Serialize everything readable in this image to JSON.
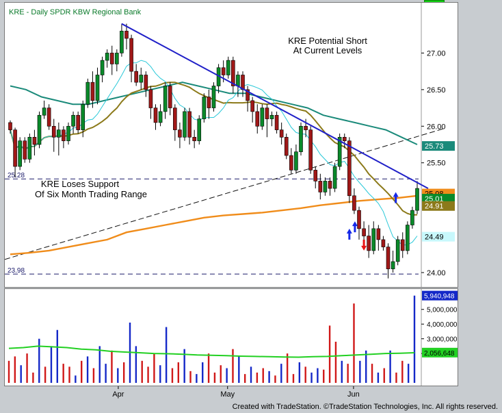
{
  "header": {
    "title": "KRE - Daily  SPDR KBW Regional Bank"
  },
  "footer": {
    "credit": "Created with TradeStation. ©TradeStation Technologies, Inc. All rights reserved."
  },
  "annotations": {
    "short_line1": "KRE Potential Short",
    "short_line2": "At Current Levels",
    "support_line1": "KRE Loses Support",
    "support_line2": "Of Six Month Trading Range",
    "level_upper": "25.28",
    "level_lower": "23.98"
  },
  "colors": {
    "up": "#0a8a2a",
    "down": "#a01818",
    "sma10": "#28c8d8",
    "sma20": "#8c7a1a",
    "sma50": "#1a8a7a",
    "sma200": "#f08c1a",
    "trend": "#2020c8",
    "vol_blue": "#1428c8",
    "vol_red": "#d01818",
    "vol_avg": "#22d022"
  },
  "chart_data": [
    {
      "type": "candlestick",
      "title": "KRE - Daily  SPDR KBW Regional Bank",
      "ylim": [
        23.85,
        27.5
      ],
      "y_ticks": [
        "27.00",
        "26.50",
        "26.00",
        "25.50",
        "24.00"
      ],
      "x_ticks": [
        "Apr",
        "May",
        "Jun"
      ],
      "candles": [
        [
          26.05,
          25.95,
          26.08,
          25.9
        ],
        [
          25.95,
          25.45,
          25.98,
          25.3
        ],
        [
          25.45,
          25.8,
          25.85,
          25.4
        ],
        [
          25.8,
          25.55,
          25.85,
          25.5
        ],
        [
          25.55,
          25.85,
          25.9,
          25.5
        ],
        [
          25.85,
          25.75,
          25.95,
          25.6
        ],
        [
          25.75,
          26.15,
          26.2,
          25.7
        ],
        [
          26.15,
          26.25,
          26.35,
          26.1
        ],
        [
          26.25,
          26.0,
          26.3,
          25.95
        ],
        [
          26.0,
          25.85,
          26.1,
          25.65
        ],
        [
          25.85,
          25.95,
          26.05,
          25.6
        ],
        [
          25.95,
          25.8,
          26.0,
          25.7
        ],
        [
          25.8,
          26.0,
          26.05,
          25.75
        ],
        [
          26.0,
          26.15,
          26.2,
          25.9
        ],
        [
          26.15,
          25.95,
          26.2,
          25.9
        ],
        [
          25.95,
          26.3,
          26.35,
          25.85
        ],
        [
          26.3,
          26.6,
          26.65,
          26.25
        ],
        [
          26.6,
          26.35,
          26.75,
          26.25
        ],
        [
          26.35,
          26.7,
          26.8,
          26.3
        ],
        [
          26.7,
          26.9,
          26.95,
          26.6
        ],
        [
          26.9,
          27.0,
          27.05,
          26.8
        ],
        [
          27.0,
          26.85,
          27.1,
          26.7
        ],
        [
          26.85,
          27.0,
          27.05,
          26.75
        ],
        [
          27.0,
          27.3,
          27.4,
          26.95
        ],
        [
          27.3,
          27.2,
          27.4,
          27.05
        ],
        [
          27.2,
          26.75,
          27.25,
          26.6
        ],
        [
          26.75,
          26.6,
          26.85,
          26.55
        ],
        [
          26.6,
          26.7,
          26.8,
          26.5
        ],
        [
          26.7,
          26.5,
          26.75,
          26.4
        ],
        [
          26.5,
          26.25,
          26.55,
          26.1
        ],
        [
          26.25,
          26.05,
          26.3,
          25.95
        ],
        [
          26.05,
          26.2,
          26.3,
          26.0
        ],
        [
          26.2,
          26.55,
          26.6,
          26.1
        ],
        [
          26.55,
          26.25,
          26.6,
          26.15
        ],
        [
          26.25,
          25.95,
          26.3,
          25.8
        ],
        [
          25.95,
          25.85,
          26.05,
          25.7
        ],
        [
          25.85,
          26.2,
          26.25,
          25.8
        ],
        [
          26.2,
          25.85,
          26.25,
          25.75
        ],
        [
          25.85,
          25.8,
          25.95,
          25.7
        ],
        [
          25.8,
          26.1,
          26.15,
          25.75
        ],
        [
          26.1,
          26.4,
          26.45,
          26.05
        ],
        [
          26.4,
          26.25,
          26.5,
          26.1
        ],
        [
          26.25,
          26.55,
          26.6,
          26.2
        ],
        [
          26.55,
          26.8,
          26.85,
          26.45
        ],
        [
          26.8,
          26.7,
          26.9,
          26.6
        ],
        [
          26.7,
          26.9,
          26.95,
          26.65
        ],
        [
          26.9,
          26.55,
          26.95,
          26.45
        ],
        [
          26.55,
          26.7,
          26.75,
          26.4
        ],
        [
          26.7,
          26.5,
          26.75,
          26.4
        ],
        [
          26.5,
          26.35,
          26.55,
          26.2
        ],
        [
          26.35,
          26.2,
          26.4,
          26.05
        ],
        [
          26.2,
          26.0,
          26.3,
          25.9
        ],
        [
          26.0,
          26.25,
          26.3,
          25.95
        ],
        [
          26.25,
          26.1,
          26.3,
          25.85
        ],
        [
          26.1,
          26.15,
          26.2,
          26.0
        ],
        [
          26.15,
          25.95,
          26.2,
          25.9
        ],
        [
          25.95,
          25.85,
          26.05,
          25.75
        ],
        [
          25.85,
          25.6,
          25.9,
          25.55
        ],
        [
          25.6,
          25.4,
          25.7,
          25.35
        ],
        [
          25.4,
          25.65,
          25.75,
          25.35
        ],
        [
          25.65,
          26.0,
          26.05,
          25.6
        ],
        [
          26.0,
          25.95,
          26.1,
          25.85
        ],
        [
          25.95,
          25.4,
          26.0,
          25.35
        ],
        [
          25.4,
          25.25,
          25.45,
          25.15
        ],
        [
          25.25,
          25.1,
          25.35,
          25.0
        ],
        [
          25.1,
          25.25,
          25.3,
          25.05
        ],
        [
          25.25,
          25.15,
          25.3,
          25.05
        ],
        [
          25.15,
          25.45,
          25.5,
          25.1
        ],
        [
          25.45,
          25.85,
          25.9,
          25.4
        ],
        [
          25.85,
          25.8,
          25.9,
          25.7
        ],
        [
          25.8,
          25.05,
          25.85,
          24.95
        ],
        [
          25.05,
          24.85,
          25.15,
          24.8
        ],
        [
          24.85,
          24.6,
          24.9,
          24.45
        ],
        [
          24.6,
          24.5,
          24.7,
          24.35
        ],
        [
          24.5,
          24.3,
          24.65,
          24.2
        ],
        [
          24.3,
          24.6,
          24.7,
          24.25
        ],
        [
          24.6,
          24.45,
          24.65,
          24.3
        ],
        [
          24.45,
          24.35,
          24.5,
          24.3
        ],
        [
          24.35,
          24.05,
          24.4,
          23.92
        ],
        [
          24.05,
          24.15,
          24.3,
          24.0
        ],
        [
          24.15,
          24.45,
          24.5,
          24.1
        ],
        [
          24.45,
          24.3,
          24.55,
          24.2
        ],
        [
          24.3,
          24.65,
          24.7,
          24.25
        ],
        [
          24.65,
          24.85,
          24.9,
          24.6
        ],
        [
          24.85,
          25.15,
          25.25,
          24.8
        ]
      ],
      "series": [
        {
          "name": "",
          "values": [
            26.55,
            26.5,
            26.4,
            26.35,
            26.3,
            26.3,
            26.35,
            26.4,
            26.45,
            26.5,
            26.55,
            26.6,
            26.55,
            26.5,
            26.45,
            26.45,
            26.4,
            26.35,
            26.3,
            26.25,
            26.15,
            26.1,
            26.05,
            26.0,
            25.95,
            25.85,
            25.75
          ]
        },
        {
          "name": "",
          "values": [
            24.25,
            24.27,
            24.3,
            24.35,
            24.4,
            24.45,
            24.55,
            24.6,
            24.65,
            24.7,
            24.75,
            24.78,
            24.8,
            24.82,
            24.85,
            24.88,
            24.92,
            24.95,
            24.98,
            25.0,
            25.02,
            25.05
          ]
        }
      ],
      "volume": [
        [
          1.5,
          "r"
        ],
        [
          1.8,
          "r"
        ],
        [
          1.2,
          "b"
        ],
        [
          2.0,
          "r"
        ],
        [
          0.7,
          "r"
        ],
        [
          3.0,
          "b"
        ],
        [
          1.1,
          "r"
        ],
        [
          2.5,
          "b"
        ],
        [
          3.6,
          "b"
        ],
        [
          1.3,
          "r"
        ],
        [
          1.1,
          "r"
        ],
        [
          0.5,
          "b"
        ],
        [
          1.5,
          "r"
        ],
        [
          1.8,
          "b"
        ],
        [
          1.0,
          "r"
        ],
        [
          2.5,
          "b"
        ],
        [
          1.3,
          "b"
        ],
        [
          2.2,
          "r"
        ],
        [
          1.0,
          "b"
        ],
        [
          1.4,
          "r"
        ],
        [
          4.1,
          "b"
        ],
        [
          2.5,
          "b"
        ],
        [
          1.5,
          "r"
        ],
        [
          1.1,
          "r"
        ],
        [
          2.0,
          "r"
        ],
        [
          1.2,
          "b"
        ],
        [
          3.8,
          "b"
        ],
        [
          1.0,
          "r"
        ],
        [
          1.4,
          "r"
        ],
        [
          2.3,
          "b"
        ],
        [
          0.8,
          "r"
        ],
        [
          0.6,
          "b"
        ],
        [
          1.4,
          "b"
        ],
        [
          2.0,
          "r"
        ],
        [
          0.7,
          "r"
        ],
        [
          1.2,
          "r"
        ],
        [
          1.0,
          "b"
        ],
        [
          2.3,
          "r"
        ],
        [
          1.8,
          "b"
        ],
        [
          0.6,
          "r"
        ],
        [
          1.1,
          "b"
        ],
        [
          0.7,
          "r"
        ],
        [
          1.0,
          "r"
        ],
        [
          0.8,
          "b"
        ],
        [
          0.5,
          "r"
        ],
        [
          1.3,
          "b"
        ],
        [
          2.0,
          "r"
        ],
        [
          0.6,
          "r"
        ],
        [
          1.4,
          "b"
        ],
        [
          1.1,
          "r"
        ],
        [
          0.7,
          "b"
        ],
        [
          1.0,
          "b"
        ],
        [
          0.9,
          "r"
        ],
        [
          3.9,
          "r"
        ],
        [
          2.8,
          "r"
        ],
        [
          1.5,
          "b"
        ],
        [
          1.3,
          "r"
        ],
        [
          5.4,
          "r"
        ],
        [
          1.5,
          "b"
        ],
        [
          2.2,
          "b"
        ],
        [
          1.3,
          "r"
        ],
        [
          0.7,
          "b"
        ],
        [
          1.0,
          "r"
        ],
        [
          2.2,
          "b"
        ],
        [
          0.7,
          "r"
        ],
        [
          1.5,
          "r"
        ],
        [
          1.3,
          "b"
        ],
        [
          5.94,
          "b"
        ]
      ],
      "volume_ticks": [
        "5,000,000",
        "4,000,000",
        "3,000,000",
        "2,000,000"
      ],
      "price_badges": [
        "25.73",
        "25.08",
        "25.01",
        "24.91",
        "24.49"
      ],
      "volume_badges": [
        "5,940,948",
        "2,056,648"
      ]
    }
  ]
}
